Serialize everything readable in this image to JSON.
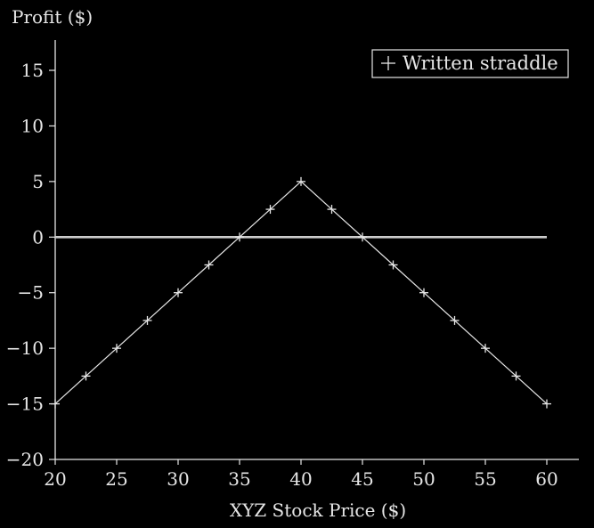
{
  "chart_data": {
    "type": "line",
    "title": "",
    "xlabel": "XYZ Stock Price ($)",
    "ylabel": "Profit ($)",
    "xlim": [
      20,
      60
    ],
    "ylim": [
      -20,
      17
    ],
    "xticks": [
      "20",
      "25",
      "30",
      "35",
      "40",
      "45",
      "50",
      "55",
      "60"
    ],
    "yticks": [
      "15",
      "10",
      "5",
      "0",
      "−5",
      "−10",
      "−15",
      "−20"
    ],
    "grid": false,
    "legend_position": "top-right",
    "series": [
      {
        "name": "Written straddle",
        "marker": "plus",
        "x": [
          20,
          22.5,
          25,
          27.5,
          30,
          32.5,
          35,
          37.5,
          40,
          42.5,
          45,
          47.5,
          50,
          52.5,
          55,
          57.5,
          60
        ],
        "y": [
          -15,
          -12.5,
          -10,
          -7.5,
          -5,
          -2.5,
          0,
          2.5,
          5,
          2.5,
          0,
          -2.5,
          -5,
          -7.5,
          -10,
          -12.5,
          -15
        ]
      }
    ],
    "reference_line": {
      "y": 0,
      "x_range": [
        20,
        60
      ]
    },
    "colors": {
      "background": "#000000",
      "foreground": "#e6e6e6",
      "zero_line": "#cccccc"
    }
  }
}
